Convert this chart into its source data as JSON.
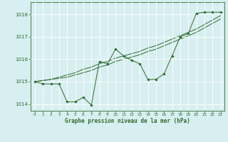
{
  "x": [
    0,
    1,
    2,
    3,
    4,
    5,
    6,
    7,
    8,
    9,
    10,
    11,
    12,
    13,
    14,
    15,
    16,
    17,
    18,
    19,
    20,
    21,
    22,
    23
  ],
  "line1": [
    1015.0,
    1014.9,
    1014.9,
    1014.9,
    1014.1,
    1014.1,
    1014.3,
    1013.95,
    1015.9,
    1015.8,
    1016.45,
    1016.15,
    1015.95,
    1015.8,
    1015.1,
    1015.1,
    1015.35,
    1016.15,
    1017.0,
    1017.15,
    1018.05,
    1018.1,
    1018.1,
    1018.1
  ],
  "line2": [
    1015.0,
    1015.05,
    1015.1,
    1015.15,
    1015.2,
    1015.3,
    1015.4,
    1015.5,
    1015.65,
    1015.75,
    1015.9,
    1016.0,
    1016.1,
    1016.2,
    1016.35,
    1016.45,
    1016.6,
    1016.75,
    1016.9,
    1017.05,
    1017.2,
    1017.4,
    1017.6,
    1017.8
  ],
  "line3": [
    1015.0,
    1015.05,
    1015.1,
    1015.2,
    1015.3,
    1015.4,
    1015.55,
    1015.65,
    1015.8,
    1015.9,
    1016.05,
    1016.15,
    1016.25,
    1016.35,
    1016.5,
    1016.6,
    1016.75,
    1016.9,
    1017.05,
    1017.2,
    1017.35,
    1017.55,
    1017.75,
    1017.95
  ],
  "bg_color": "#d7eff0",
  "grid_color": "#ffffff",
  "line_color": "#2d6a2d",
  "marker_color": "#2d6a2d",
  "text_color": "#2d6a2d",
  "xlabel": "Graphe pression niveau de la mer (hPa)",
  "ylim": [
    1013.7,
    1018.55
  ],
  "xlim": [
    -0.5,
    23.5
  ],
  "yticks": [
    1014,
    1015,
    1016,
    1017,
    1018
  ],
  "xticks": [
    0,
    1,
    2,
    3,
    4,
    5,
    6,
    7,
    8,
    9,
    10,
    11,
    12,
    13,
    14,
    15,
    16,
    17,
    18,
    19,
    20,
    21,
    22,
    23
  ]
}
